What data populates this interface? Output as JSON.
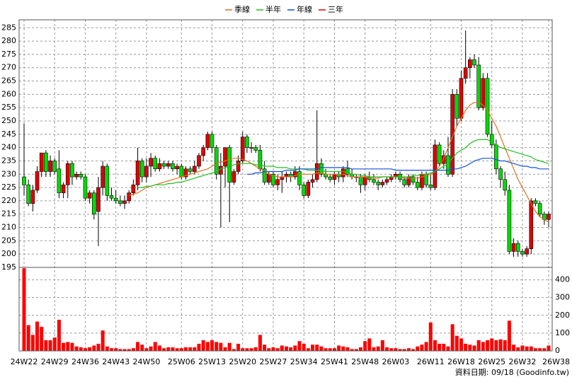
{
  "chart_data": {
    "type": "candlestick",
    "footer": "資料日期: 09/18 (Goodinfo.tw)",
    "grid": true,
    "up_color": "#e00000",
    "down_color": "#00dd00",
    "categories": [
      "24W22",
      null,
      null,
      null,
      null,
      null,
      null,
      "24W29",
      null,
      null,
      null,
      null,
      null,
      null,
      "24W36",
      null,
      null,
      null,
      null,
      null,
      null,
      "24W43",
      null,
      null,
      null,
      null,
      null,
      null,
      "24W50",
      null,
      null,
      null,
      null,
      null,
      null,
      null,
      "25W06",
      null,
      null,
      null,
      null,
      null,
      null,
      "25W13",
      null,
      null,
      null,
      null,
      null,
      null,
      "25W20",
      null,
      null,
      null,
      null,
      null,
      null,
      "25W27",
      null,
      null,
      null,
      null,
      null,
      null,
      "25W34",
      null,
      null,
      null,
      null,
      null,
      null,
      "25W41",
      null,
      null,
      null,
      null,
      null,
      null,
      "25W48",
      null,
      null,
      null,
      null,
      null,
      null,
      "26W03",
      null,
      null,
      null,
      null,
      null,
      null,
      null,
      "26W11",
      null,
      null,
      null,
      null,
      null,
      null,
      "26W18",
      null,
      null,
      null,
      null,
      null,
      null,
      "26W25",
      null,
      null,
      null,
      null,
      null,
      null,
      "26W32",
      null,
      null,
      null,
      null,
      null,
      "26W38"
    ],
    "open": [
      229,
      226,
      219,
      224,
      231,
      238,
      231,
      235,
      232,
      223,
      226,
      234,
      229,
      230,
      229,
      221,
      223,
      216,
      225,
      233,
      222,
      221,
      220,
      219,
      220,
      223,
      226,
      235,
      229,
      233,
      236,
      232,
      234,
      233,
      234,
      232,
      233,
      229,
      232,
      231,
      233,
      237,
      240,
      245,
      240,
      230,
      233,
      240,
      227,
      231,
      235,
      244,
      240,
      240,
      239,
      232,
      227,
      230,
      226,
      228,
      229,
      230,
      229,
      231,
      226,
      222,
      227,
      228,
      234,
      230,
      229,
      228,
      230,
      229,
      232,
      230,
      229,
      229,
      226,
      229,
      228,
      227,
      226,
      227,
      228,
      229,
      230,
      228,
      226,
      229,
      227,
      225,
      230,
      226,
      225,
      241,
      234,
      237,
      230,
      260,
      251,
      266,
      270,
      273,
      271,
      255,
      266,
      245,
      241,
      232,
      228,
      224,
      201,
      204,
      201,
      200,
      202,
      220,
      219,
      215,
      213
    ],
    "high": [
      249,
      228,
      226,
      233,
      238,
      239,
      237,
      236,
      239,
      227,
      235,
      235,
      231,
      231,
      230,
      224,
      224,
      229,
      235,
      234,
      225,
      224,
      222,
      222,
      224,
      228,
      240,
      236,
      236,
      238,
      237,
      236,
      235,
      235,
      235,
      234,
      234,
      233,
      233,
      235,
      238,
      241,
      246,
      246,
      241,
      238,
      240,
      241,
      232,
      237,
      246,
      245,
      242,
      241,
      241,
      235,
      231,
      231,
      230,
      231,
      231,
      231,
      233,
      233,
      227,
      228,
      230,
      254,
      236,
      232,
      230,
      231,
      231,
      233,
      235,
      232,
      230,
      230,
      230,
      231,
      230,
      228,
      228,
      229,
      230,
      231,
      231,
      229,
      230,
      230,
      229,
      231,
      231,
      230,
      243,
      242,
      239,
      244,
      262,
      262,
      269,
      284,
      274,
      275,
      274,
      268,
      268,
      250,
      243,
      233,
      231,
      226,
      206,
      205,
      202,
      203,
      221,
      221,
      220,
      216,
      216
    ],
    "low": [
      222,
      218,
      216,
      223,
      229,
      229,
      229,
      230,
      221,
      221,
      221,
      226,
      228,
      228,
      220,
      219,
      213,
      203,
      222,
      220,
      220,
      219,
      218,
      217,
      219,
      222,
      224,
      227,
      227,
      229,
      231,
      231,
      232,
      232,
      231,
      230,
      228,
      228,
      230,
      230,
      232,
      235,
      239,
      238,
      228,
      210,
      225,
      212,
      226,
      230,
      234,
      238,
      238,
      238,
      231,
      226,
      226,
      225,
      224,
      223,
      227,
      227,
      228,
      224,
      221,
      221,
      225,
      227,
      229,
      228,
      227,
      226,
      227,
      227,
      229,
      228,
      227,
      223,
      224,
      227,
      226,
      224,
      225,
      226,
      227,
      228,
      227,
      225,
      225,
      226,
      224,
      224,
      225,
      224,
      224,
      233,
      232,
      229,
      229,
      248,
      250,
      264,
      266,
      270,
      254,
      254,
      244,
      240,
      230,
      225,
      222,
      200,
      199,
      199,
      199,
      199,
      200,
      218,
      214,
      211,
      210
    ],
    "close": [
      226,
      219,
      224,
      231,
      238,
      231,
      235,
      231,
      223,
      226,
      234,
      229,
      230,
      229,
      221,
      223,
      215,
      225,
      233,
      222,
      221,
      220,
      219,
      220,
      223,
      226,
      235,
      229,
      233,
      236,
      232,
      234,
      233,
      234,
      232,
      233,
      229,
      232,
      231,
      233,
      237,
      240,
      245,
      240,
      230,
      233,
      240,
      227,
      231,
      235,
      244,
      240,
      240,
      239,
      232,
      227,
      230,
      226,
      228,
      229,
      230,
      229,
      231,
      226,
      222,
      227,
      228,
      234,
      230,
      229,
      228,
      230,
      229,
      232,
      230,
      229,
      229,
      226,
      229,
      228,
      227,
      226,
      227,
      228,
      229,
      230,
      228,
      226,
      229,
      227,
      225,
      230,
      226,
      225,
      241,
      234,
      237,
      230,
      260,
      251,
      266,
      270,
      273,
      271,
      255,
      266,
      245,
      241,
      232,
      228,
      224,
      201,
      204,
      201,
      200,
      202,
      220,
      219,
      215,
      213,
      215
    ],
    "ylim": [
      195,
      288
    ],
    "yticks": [
      195,
      200,
      205,
      210,
      215,
      220,
      225,
      230,
      235,
      240,
      245,
      250,
      255,
      260,
      265,
      270,
      275,
      280,
      285
    ],
    "series": [
      {
        "name": "季線",
        "color": "#e07020",
        "values": [
          null,
          null,
          null,
          null,
          null,
          null,
          null,
          null,
          null,
          null,
          null,
          null,
          null,
          null,
          null,
          null,
          null,
          null,
          null,
          null,
          null,
          null,
          null,
          null,
          222,
          222.5,
          223,
          224,
          225,
          225.5,
          226,
          226.5,
          227,
          227.5,
          228,
          228.5,
          229,
          229.5,
          230,
          230.5,
          231,
          231.5,
          232,
          233,
          234,
          234.5,
          235,
          235.5,
          236,
          236,
          235.5,
          235,
          234,
          233,
          232,
          231,
          230,
          229.5,
          229,
          229,
          229,
          229,
          229.5,
          230,
          230,
          230,
          230,
          230.5,
          230.5,
          230,
          230,
          230,
          230,
          230,
          229.5,
          229,
          229,
          229,
          229,
          228.5,
          228.5,
          228.5,
          229,
          229,
          229,
          229,
          229,
          228.5,
          228.5,
          228.5,
          228.5,
          229,
          229.5,
          230,
          231,
          233,
          236,
          240,
          244,
          248,
          251,
          254,
          256,
          257,
          257,
          256,
          254,
          251,
          248,
          244,
          240,
          236,
          232,
          228,
          225,
          222,
          219,
          216,
          214,
          213,
          212
        ]
      },
      {
        "name": "半年",
        "color": "#20c020",
        "values": [
          null,
          null,
          null,
          null,
          null,
          null,
          null,
          null,
          null,
          null,
          null,
          null,
          null,
          null,
          null,
          null,
          null,
          null,
          null,
          null,
          null,
          null,
          null,
          null,
          null,
          null,
          225,
          225,
          225.5,
          225.5,
          226,
          226,
          226,
          226.5,
          226.5,
          227,
          227,
          227.5,
          228,
          228.5,
          229,
          229.5,
          230,
          230.5,
          231,
          232,
          232.5,
          233,
          233.5,
          234,
          234,
          234,
          234,
          233.5,
          233.5,
          233,
          233,
          233,
          232.5,
          232.5,
          232.5,
          232,
          232,
          232,
          232,
          231.5,
          231.5,
          231.5,
          231.5,
          231,
          231,
          231,
          231,
          231,
          230.5,
          230,
          230,
          229.5,
          229.5,
          229,
          229,
          229,
          229,
          229,
          229,
          229,
          229,
          229,
          229,
          229.5,
          229.5,
          230,
          230,
          230.5,
          231,
          232,
          233,
          234,
          236,
          238,
          239,
          240,
          241.5,
          242.5,
          243,
          243,
          243,
          242,
          241,
          240,
          239.5,
          239,
          238.5,
          238,
          237.5,
          237,
          236.5,
          235.5,
          235,
          234.5,
          234
        ]
      },
      {
        "name": "年線",
        "color": "#1050e0",
        "values": [
          null,
          null,
          null,
          null,
          null,
          null,
          null,
          null,
          null,
          null,
          null,
          null,
          null,
          null,
          null,
          null,
          null,
          null,
          null,
          null,
          null,
          null,
          null,
          null,
          null,
          null,
          null,
          null,
          null,
          null,
          null,
          null,
          null,
          null,
          null,
          null,
          null,
          null,
          null,
          null,
          null,
          null,
          null,
          null,
          null,
          null,
          null,
          null,
          null,
          null,
          null,
          230,
          230,
          230.5,
          230.5,
          231,
          231,
          231,
          231,
          231,
          231.5,
          231.5,
          231.5,
          232,
          232,
          232,
          232,
          232,
          232.5,
          232.5,
          232.5,
          232.5,
          232.5,
          232.5,
          232.5,
          232,
          232,
          232,
          232,
          232,
          232,
          232,
          232,
          232,
          232,
          231.5,
          231.5,
          231.5,
          231.5,
          231.5,
          231.5,
          231.5,
          231.5,
          231.5,
          231.5,
          231.5,
          231.5,
          231.5,
          232,
          232,
          232.5,
          233,
          234,
          235,
          235.5,
          236,
          236,
          236,
          235.5,
          235,
          235,
          234.5,
          234,
          233.5,
          233,
          233,
          232.5,
          232.5,
          232,
          232,
          232
        ]
      },
      {
        "name": "三年",
        "color": "#e00000",
        "values": [
          null,
          null,
          null,
          null,
          null,
          null,
          null,
          null,
          null,
          null,
          null,
          null,
          null,
          null,
          null,
          null,
          null,
          null,
          null,
          null,
          null,
          null,
          null,
          null,
          null,
          null,
          null,
          null,
          null,
          null,
          null,
          null,
          null,
          null,
          null,
          null,
          null,
          null,
          null,
          null,
          null,
          null,
          null,
          null,
          null,
          null,
          null,
          null,
          null,
          null,
          null,
          null,
          null,
          null,
          null,
          null,
          null,
          null,
          null,
          null,
          null,
          null,
          null,
          null,
          null,
          null,
          null,
          null,
          null,
          null,
          null,
          null,
          null,
          null,
          null,
          null,
          null,
          null,
          null,
          null,
          null,
          null,
          null,
          null,
          null,
          null,
          null,
          null,
          null,
          null,
          null,
          null,
          null,
          null,
          null,
          null,
          null,
          null,
          null,
          null,
          null,
          null,
          null,
          null,
          null,
          null,
          null,
          null,
          null,
          null,
          null,
          null,
          null,
          null,
          null,
          null,
          null,
          null,
          null,
          null,
          null
        ]
      }
    ],
    "volume": {
      "color": "#ff0000",
      "ylim": [
        0,
        470
      ],
      "yticks": [
        0,
        100,
        200,
        300,
        400
      ],
      "values": [
        465,
        145,
        90,
        165,
        135,
        60,
        60,
        75,
        175,
        45,
        50,
        45,
        25,
        20,
        15,
        20,
        30,
        40,
        115,
        25,
        15,
        15,
        10,
        10,
        10,
        15,
        50,
        35,
        15,
        25,
        50,
        30,
        15,
        20,
        20,
        15,
        15,
        20,
        20,
        20,
        40,
        60,
        50,
        60,
        50,
        45,
        20,
        45,
        10,
        40,
        15,
        15,
        15,
        20,
        90,
        35,
        15,
        20,
        15,
        30,
        25,
        20,
        30,
        55,
        40,
        15,
        35,
        35,
        25,
        15,
        15,
        15,
        30,
        25,
        20,
        10,
        10,
        20,
        55,
        70,
        20,
        25,
        60,
        20,
        15,
        15,
        10,
        10,
        15,
        10,
        25,
        35,
        50,
        160,
        60,
        40,
        40,
        25,
        150,
        85,
        70,
        40,
        35,
        30,
        60,
        50,
        60,
        70,
        60,
        65,
        60,
        170,
        35,
        20,
        30,
        25,
        25,
        15,
        15,
        15,
        30
      ]
    }
  }
}
